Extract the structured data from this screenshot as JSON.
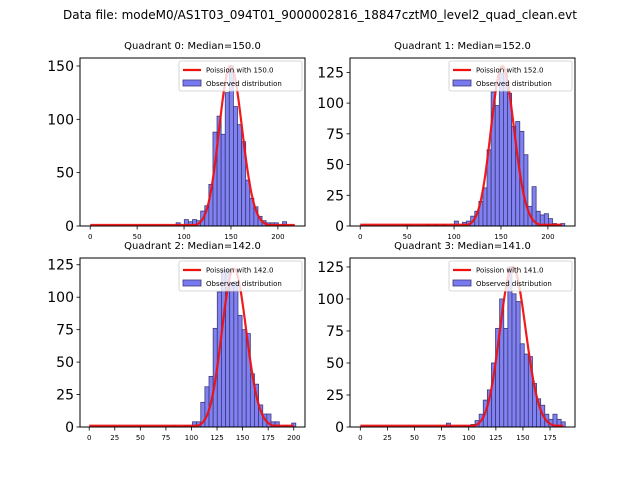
{
  "figure": {
    "suptitle": "Data file: modeM0/AS1T03_094T01_9000002816_18847cztM0_level2_quad_clean.evt"
  },
  "colors": {
    "bar_fill": "#7a7af0",
    "bar_edge": "#3a3a7a",
    "poisson_line": "#ee1111",
    "axis": "#000000"
  },
  "chart_data": [
    {
      "type": "bar",
      "title": "Quadrant 0: Median=150.0",
      "median": 150.0,
      "xlim": [
        -10.9,
        228.9
      ],
      "ylim": [
        0,
        157.5
      ],
      "xticks": [
        0,
        50,
        100,
        150,
        200
      ],
      "yticks": [
        0,
        50,
        100,
        150
      ],
      "bin_width": 4.36,
      "bins": {
        "21": 3,
        "23": 6,
        "24": 4,
        "25": 6,
        "26": 5,
        "27": 14,
        "28": 19,
        "29": 39,
        "30": 88,
        "31": 103,
        "32": 86,
        "33": 125,
        "34": 150,
        "35": 112,
        "36": 95,
        "37": 79,
        "38": 43,
        "39": 26,
        "40": 18,
        "41": 9,
        "42": 5,
        "43": 3,
        "44": 3,
        "45": 3,
        "47": 4
      },
      "legend": [
        "Poission with 150.0",
        "Observed distribution"
      ],
      "poisson_mean": 150.0,
      "poisson_scale": 150,
      "poisson_xrange": [
        0,
        218
      ]
    },
    {
      "type": "bar",
      "title": "Quadrant 1: Median=152.0",
      "median": 152.0,
      "xlim": [
        -10.9,
        228.9
      ],
      "ylim": [
        0,
        136.7
      ],
      "xticks": [
        0,
        50,
        100,
        150,
        200
      ],
      "yticks": [
        0,
        25,
        50,
        75,
        100,
        125
      ],
      "bin_width": 4.36,
      "bins": {
        "11": 1,
        "16": 1,
        "18": 1,
        "20": 1,
        "23": 4,
        "25": 3,
        "26": 4,
        "27": 8,
        "28": 12,
        "29": 20,
        "30": 31,
        "31": 62,
        "32": 109,
        "33": 98,
        "34": 124,
        "35": 124,
        "36": 108,
        "37": 81,
        "38": 85,
        "39": 77,
        "40": 58,
        "41": 16,
        "42": 32,
        "43": 12,
        "44": 9,
        "45": 10,
        "46": 6,
        "47": 2,
        "49": 2
      },
      "legend": [
        "Poission with 152.0",
        "Observed distribution"
      ],
      "poisson_mean": 152.0,
      "poisson_scale": 130,
      "poisson_xrange": [
        0,
        215
      ]
    },
    {
      "type": "bar",
      "title": "Quadrant 2: Median=142.0",
      "median": 142.0,
      "xlim": [
        -9.0,
        211.0
      ],
      "ylim": [
        0,
        130.2
      ],
      "xticks": [
        0,
        25,
        50,
        75,
        100,
        125,
        150,
        175,
        200
      ],
      "yticks": [
        0,
        25,
        50,
        75,
        100,
        125
      ],
      "bin_width": 4.04,
      "bins": {
        "20": 1,
        "23": 1,
        "24": 1,
        "25": 4,
        "26": 4,
        "27": 19,
        "28": 31,
        "29": 39,
        "30": 76,
        "31": 104,
        "32": 121,
        "33": 121,
        "34": 111,
        "35": 112,
        "36": 86,
        "37": 75,
        "38": 72,
        "39": 41,
        "40": 33,
        "41": 17,
        "42": 10,
        "43": 10,
        "44": 4,
        "45": 4,
        "47": 1,
        "49": 3
      },
      "legend": [
        "Poission with 142.0",
        "Observed distribution"
      ],
      "poisson_mean": 142.0,
      "poisson_scale": 122,
      "poisson_xrange": [
        0,
        200
      ]
    },
    {
      "type": "bar",
      "title": "Quadrant 3: Median=141.0",
      "median": 141.0,
      "xlim": [
        -9.5,
        198.0
      ],
      "ylim": [
        0,
        132.0
      ],
      "xticks": [
        0,
        25,
        50,
        75,
        100,
        125,
        150,
        175
      ],
      "yticks": [
        0,
        25,
        50,
        75,
        100,
        125
      ],
      "bin_width": 3.78,
      "bins": {
        "21": 3,
        "25": 1,
        "26": 1,
        "27": 2,
        "28": 5,
        "29": 10,
        "30": 21,
        "31": 29,
        "32": 50,
        "33": 77,
        "34": 100,
        "35": 77,
        "36": 125,
        "37": 104,
        "38": 98,
        "39": 65,
        "40": 57,
        "41": 55,
        "42": 34,
        "43": 22,
        "44": 17,
        "45": 10,
        "46": 6,
        "47": 10,
        "48": 6,
        "49": 4
      },
      "legend": [
        "Poission with 141.0",
        "Observed distribution"
      ],
      "poisson_mean": 141.0,
      "poisson_scale": 125,
      "poisson_xrange": [
        0,
        187
      ]
    }
  ]
}
